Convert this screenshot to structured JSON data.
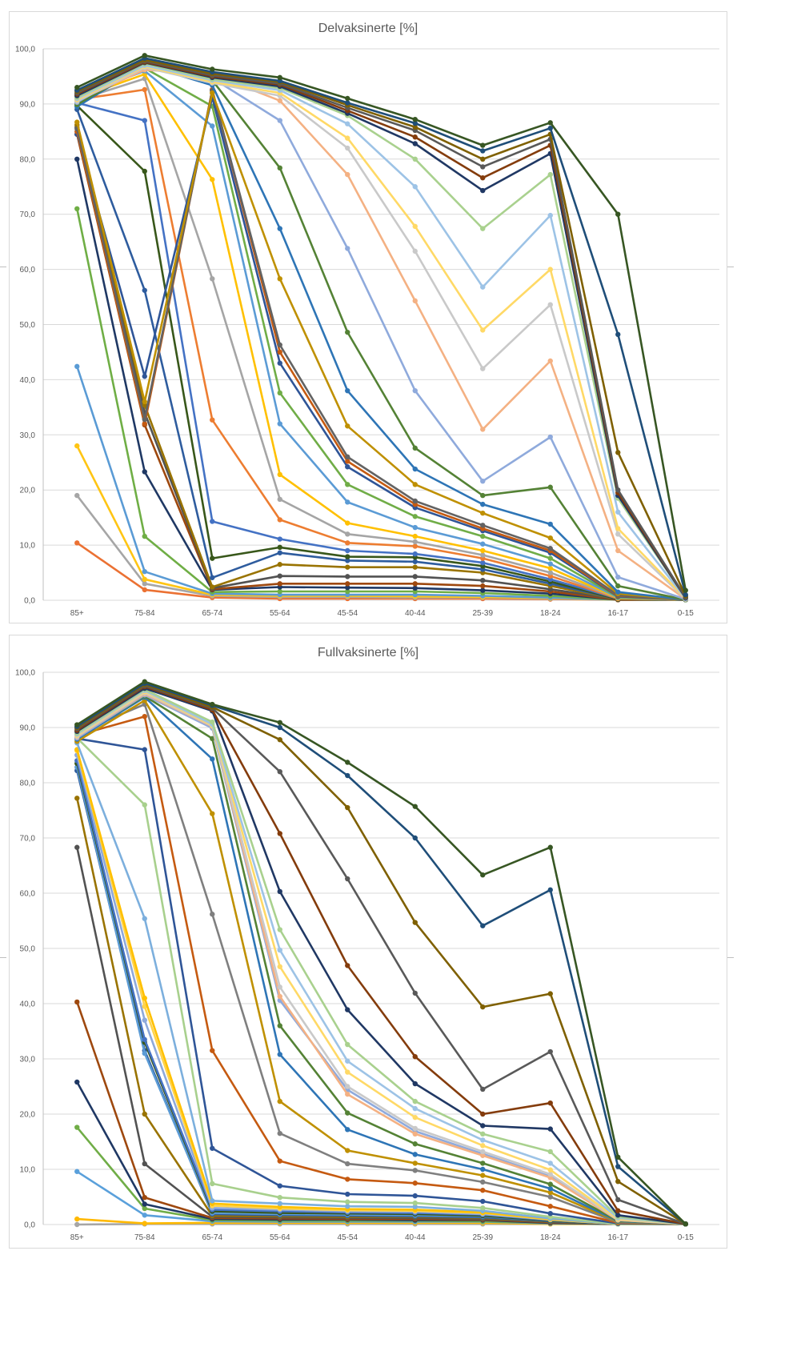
{
  "chart_data": [
    {
      "type": "line",
      "title": "Delvaksinerte [%]",
      "xlabel": "",
      "ylabel": "",
      "ylim": [
        0,
        100
      ],
      "y_ticks": [
        "0,0",
        "10,0",
        "20,0",
        "30,0",
        "40,0",
        "50,0",
        "60,0",
        "70,0",
        "80,0",
        "90,0",
        "100,0"
      ],
      "categories": [
        "85+",
        "75-84",
        "65-74",
        "55-64",
        "45-54",
        "40-44",
        "25-39",
        "18-24",
        "16-17",
        "0-15"
      ],
      "grid": true,
      "legend": "none",
      "series": [
        {
          "color": "#375623",
          "values": [
            93.0,
            98.8,
            96.3,
            94.8,
            91.0,
            87.2,
            82.5,
            86.6,
            70.0,
            1.8
          ]
        },
        {
          "color": "#1F4E79",
          "values": [
            92.5,
            98.3,
            95.8,
            94.2,
            90.2,
            86.5,
            81.5,
            85.6,
            48.2,
            1.0
          ]
        },
        {
          "color": "#7F6000",
          "values": [
            92.3,
            98.0,
            95.5,
            94.0,
            89.8,
            85.8,
            80.0,
            84.5,
            26.8,
            0.8
          ]
        },
        {
          "color": "#595959",
          "values": [
            92.0,
            97.8,
            95.2,
            93.7,
            89.3,
            85.2,
            78.6,
            83.6,
            20.0,
            0.5
          ]
        },
        {
          "color": "#843C0C",
          "values": [
            91.8,
            97.6,
            95.0,
            93.5,
            88.8,
            84.0,
            76.6,
            82.5,
            19.5,
            0.5
          ]
        },
        {
          "color": "#203864",
          "values": [
            91.5,
            97.5,
            94.8,
            93.2,
            88.3,
            82.8,
            74.3,
            81.0,
            19.0,
            0.4
          ]
        },
        {
          "color": "#A9D18E",
          "values": [
            91.2,
            97.3,
            94.5,
            92.9,
            87.9,
            80.0,
            67.4,
            77.2,
            18.5,
            0.4
          ]
        },
        {
          "color": "#9DC3E6",
          "values": [
            91.0,
            97.0,
            94.3,
            92.5,
            86.4,
            75.0,
            56.8,
            69.8,
            16.0,
            0.3
          ]
        },
        {
          "color": "#FFD966",
          "values": [
            90.8,
            96.8,
            94.0,
            92.0,
            83.8,
            67.8,
            49.0,
            60.0,
            13.0,
            0.3
          ]
        },
        {
          "color": "#C9C9C9",
          "values": [
            90.5,
            96.6,
            93.8,
            91.5,
            82.0,
            63.3,
            42.0,
            53.6,
            12.0,
            0.2
          ]
        },
        {
          "color": "#F4B183",
          "values": [
            90.6,
            96.2,
            95.4,
            90.6,
            77.2,
            54.3,
            31.0,
            43.4,
            9.0,
            0.2
          ]
        },
        {
          "color": "#8FAADC",
          "values": [
            90.3,
            97.3,
            94.7,
            87.0,
            63.8,
            38.0,
            21.6,
            29.6,
            4.2,
            0.2
          ]
        },
        {
          "color": "#548235",
          "values": [
            89.9,
            96.9,
            94.3,
            78.4,
            48.6,
            27.6,
            19.0,
            20.5,
            2.6,
            0.1
          ]
        },
        {
          "color": "#2E75B6",
          "values": [
            89.5,
            97.1,
            93.4,
            67.4,
            38.0,
            23.8,
            17.4,
            13.8,
            1.5,
            0.1
          ]
        },
        {
          "color": "#BF9000",
          "values": [
            86.7,
            36.0,
            92.0,
            58.3,
            31.6,
            21.0,
            15.8,
            11.3,
            1.2,
            0.1
          ]
        },
        {
          "color": "#636363",
          "values": [
            85.5,
            32.8,
            92.4,
            46.3,
            26.0,
            18.0,
            13.6,
            9.4,
            0.9,
            0.1
          ]
        },
        {
          "color": "#C55A11",
          "values": [
            85.0,
            32.0,
            92.6,
            45.0,
            25.2,
            17.4,
            13.0,
            9.0,
            0.8,
            0.1
          ]
        },
        {
          "color": "#2F5597",
          "values": [
            84.5,
            40.6,
            91.2,
            43.0,
            24.2,
            16.8,
            12.6,
            8.6,
            0.7,
            0.1
          ]
        },
        {
          "color": "#70AD47",
          "values": [
            91.7,
            96.5,
            89.6,
            37.6,
            21.0,
            15.2,
            11.6,
            7.6,
            0.6,
            0.1
          ]
        },
        {
          "color": "#5B9BD5",
          "values": [
            91.3,
            96.0,
            86.0,
            32.0,
            17.8,
            13.2,
            10.2,
            6.6,
            0.5,
            0.1
          ]
        },
        {
          "color": "#FFC000",
          "values": [
            91.0,
            95.4,
            76.3,
            22.8,
            14.0,
            11.6,
            9.0,
            5.8,
            0.4,
            0.1
          ]
        },
        {
          "color": "#A5A5A5",
          "values": [
            90.7,
            94.6,
            58.3,
            18.3,
            12.0,
            10.6,
            8.2,
            5.0,
            0.4,
            0.1
          ]
        },
        {
          "color": "#ED7D31",
          "values": [
            90.8,
            92.6,
            32.7,
            14.6,
            10.4,
            9.8,
            7.6,
            4.4,
            0.3,
            0.1
          ]
        },
        {
          "color": "#4472C4",
          "values": [
            90.2,
            87.0,
            14.3,
            11.1,
            9.0,
            8.4,
            6.8,
            3.8,
            0.3,
            0.1
          ]
        },
        {
          "color": "#38571A",
          "values": [
            89.7,
            77.8,
            7.6,
            9.6,
            7.9,
            7.8,
            6.2,
            3.4,
            0.2,
            0.1
          ]
        },
        {
          "color": "#2E5C9E",
          "values": [
            89.0,
            56.2,
            4.1,
            8.6,
            7.2,
            7.0,
            5.6,
            3.0,
            0.2,
            0.1
          ]
        },
        {
          "color": "#997300",
          "values": [
            86.2,
            35.4,
            2.4,
            6.5,
            6.0,
            6.0,
            5.0,
            2.6,
            0.2,
            0.1
          ]
        },
        {
          "color": "#525252",
          "values": [
            85.8,
            34.0,
            2.2,
            4.4,
            4.3,
            4.3,
            3.6,
            2.0,
            0.2,
            0.1
          ]
        },
        {
          "color": "#9E480E",
          "values": [
            84.5,
            31.8,
            2.0,
            3.0,
            3.0,
            3.0,
            2.6,
            1.6,
            0.1,
            0.1
          ]
        },
        {
          "color": "#1F3864",
          "values": [
            80.0,
            23.3,
            1.9,
            2.4,
            2.3,
            2.2,
            1.8,
            1.2,
            0.1,
            0.1
          ]
        },
        {
          "color": "#6FAE45",
          "values": [
            71.0,
            11.6,
            1.5,
            1.6,
            1.6,
            1.6,
            1.3,
            0.8,
            0.1,
            0.1
          ]
        },
        {
          "color": "#5A9BD5",
          "values": [
            42.4,
            5.2,
            1.2,
            1.0,
            1.0,
            1.0,
            0.8,
            0.5,
            0.1,
            0.1
          ]
        },
        {
          "color": "#FFC514",
          "values": [
            28.0,
            3.8,
            1.0,
            0.8,
            0.8,
            0.7,
            0.6,
            0.4,
            0.1,
            0.1
          ]
        },
        {
          "color": "#A6A6A6",
          "values": [
            19.0,
            3.0,
            0.8,
            0.6,
            0.6,
            0.5,
            0.5,
            0.3,
            0.1,
            0.1
          ]
        },
        {
          "color": "#EB7133",
          "values": [
            10.4,
            1.9,
            0.5,
            0.3,
            0.3,
            0.3,
            0.3,
            0.2,
            0.1,
            0.1
          ]
        }
      ]
    },
    {
      "type": "line",
      "title": "Fullvaksinerte [%]",
      "xlabel": "",
      "ylabel": "",
      "ylim": [
        0,
        100
      ],
      "y_ticks": [
        "0,0",
        "10,0",
        "20,0",
        "30,0",
        "40,0",
        "50,0",
        "60,0",
        "70,0",
        "80,0",
        "90,0",
        "100,0"
      ],
      "categories": [
        "85+",
        "75-84",
        "65-74",
        "55-64",
        "45-54",
        "40-44",
        "25-39",
        "18-24",
        "16-17",
        "0-15"
      ],
      "grid": true,
      "legend": "none",
      "series": [
        {
          "color": "#375623",
          "values": [
            90.5,
            98.3,
            94.2,
            90.9,
            83.7,
            75.7,
            63.3,
            68.3,
            12.2,
            0.1
          ]
        },
        {
          "color": "#1F4E79",
          "values": [
            90.2,
            98.0,
            94.0,
            90.0,
            81.3,
            70.0,
            54.1,
            60.6,
            10.5,
            0.1
          ]
        },
        {
          "color": "#7F6000",
          "values": [
            90.0,
            97.8,
            93.7,
            87.8,
            75.5,
            54.7,
            39.4,
            41.8,
            7.8,
            0.1
          ]
        },
        {
          "color": "#595959",
          "values": [
            89.8,
            97.6,
            93.5,
            82.0,
            62.6,
            41.9,
            24.5,
            31.3,
            4.5,
            0.1
          ]
        },
        {
          "color": "#843C0C",
          "values": [
            89.5,
            97.4,
            93.2,
            70.8,
            46.9,
            30.4,
            20.0,
            22.0,
            2.5,
            0.1
          ]
        },
        {
          "color": "#203864",
          "values": [
            89.3,
            97.1,
            93.0,
            60.3,
            38.9,
            25.5,
            17.9,
            17.3,
            1.7,
            0.1
          ]
        },
        {
          "color": "#A9D18E",
          "values": [
            89.0,
            96.9,
            91.0,
            53.4,
            32.6,
            22.3,
            16.4,
            13.2,
            1.4,
            0.1
          ]
        },
        {
          "color": "#9DC3E6",
          "values": [
            88.8,
            96.7,
            90.6,
            49.7,
            29.6,
            21.0,
            15.3,
            11.1,
            1.2,
            0.1
          ]
        },
        {
          "color": "#FFD966",
          "values": [
            88.6,
            96.5,
            90.4,
            46.7,
            27.6,
            19.4,
            14.3,
            9.9,
            1.0,
            0.1
          ]
        },
        {
          "color": "#C9C9C9",
          "values": [
            88.4,
            96.3,
            90.3,
            43.0,
            25.0,
            17.4,
            13.2,
            9.1,
            0.9,
            0.1
          ]
        },
        {
          "color": "#F4B183",
          "values": [
            88.3,
            96.1,
            90.2,
            41.3,
            23.6,
            16.4,
            12.5,
            8.5,
            0.8,
            0.1
          ]
        },
        {
          "color": "#8FAADC",
          "values": [
            88.1,
            95.9,
            89.9,
            40.6,
            24.4,
            16.9,
            12.8,
            8.7,
            0.8,
            0.1
          ]
        },
        {
          "color": "#548235",
          "values": [
            88.2,
            95.7,
            88.0,
            36.0,
            20.2,
            14.6,
            11.1,
            7.3,
            0.7,
            0.1
          ]
        },
        {
          "color": "#2E75B6",
          "values": [
            87.9,
            95.5,
            84.3,
            30.8,
            17.2,
            12.7,
            10.0,
            6.5,
            0.6,
            0.1
          ]
        },
        {
          "color": "#BF9000",
          "values": [
            87.5,
            94.9,
            74.4,
            22.3,
            13.4,
            11.1,
            8.9,
            5.8,
            0.5,
            0.1
          ]
        },
        {
          "color": "#7F7F7F",
          "values": [
            89.0,
            94.2,
            56.2,
            16.5,
            11.0,
            9.8,
            7.7,
            5.0,
            0.4,
            0.1
          ]
        },
        {
          "color": "#C55A11",
          "values": [
            88.6,
            92.0,
            31.5,
            11.5,
            8.2,
            7.5,
            6.2,
            3.3,
            0.3,
            0.1
          ]
        },
        {
          "color": "#2F5597",
          "values": [
            88.0,
            86.0,
            13.8,
            7.0,
            5.5,
            5.2,
            4.2,
            2.0,
            0.2,
            0.1
          ]
        },
        {
          "color": "#A8D08D",
          "values": [
            88.1,
            76.0,
            7.4,
            4.9,
            4.1,
            3.9,
            3.0,
            1.4,
            0.1,
            0.1
          ]
        },
        {
          "color": "#7CAFDD",
          "values": [
            87.2,
            55.4,
            4.3,
            3.8,
            3.3,
            3.2,
            2.5,
            1.1,
            0.1,
            0.1
          ]
        },
        {
          "color": "#FFC000",
          "values": [
            86.0,
            41.0,
            3.8,
            3.2,
            2.8,
            2.7,
            2.2,
            1.0,
            0.1,
            0.1
          ]
        },
        {
          "color": "#FFD34D",
          "values": [
            85.8,
            39.5,
            3.4,
            2.9,
            2.6,
            2.5,
            2.1,
            0.9,
            0.1,
            0.1
          ]
        },
        {
          "color": "#8EA9DB",
          "values": [
            85.0,
            37.0,
            3.0,
            2.7,
            2.4,
            2.3,
            1.9,
            0.9,
            0.1,
            0.1
          ]
        },
        {
          "color": "#4472C4",
          "values": [
            84.0,
            33.5,
            2.7,
            2.4,
            2.2,
            2.1,
            1.8,
            0.8,
            0.1,
            0.1
          ]
        },
        {
          "color": "#38571A",
          "values": [
            83.5,
            33.0,
            2.4,
            2.1,
            2.0,
            1.9,
            1.6,
            0.7,
            0.1,
            0.1
          ]
        },
        {
          "color": "#5B9BD5",
          "values": [
            82.8,
            31.0,
            2.1,
            1.9,
            1.8,
            1.7,
            1.5,
            0.7,
            0.1,
            0.1
          ]
        },
        {
          "color": "#2E5C9E",
          "values": [
            82.2,
            31.5,
            1.9,
            1.7,
            1.6,
            1.5,
            1.3,
            0.6,
            0.1,
            0.1
          ]
        },
        {
          "color": "#997300",
          "values": [
            77.2,
            20.0,
            1.6,
            1.5,
            1.4,
            1.4,
            1.2,
            0.5,
            0.1,
            0.1
          ]
        },
        {
          "color": "#525252",
          "values": [
            68.3,
            11.0,
            1.4,
            1.3,
            1.2,
            1.2,
            1.0,
            0.5,
            0.1,
            0.1
          ]
        },
        {
          "color": "#9E480E",
          "values": [
            40.3,
            4.9,
            1.2,
            1.1,
            1.0,
            1.0,
            0.9,
            0.4,
            0.1,
            0.1
          ]
        },
        {
          "color": "#1F3864",
          "values": [
            25.8,
            3.7,
            1.0,
            0.9,
            0.9,
            0.8,
            0.8,
            0.3,
            0.1,
            0.1
          ]
        },
        {
          "color": "#70AD47",
          "values": [
            17.6,
            2.9,
            0.8,
            0.7,
            0.7,
            0.7,
            0.6,
            0.3,
            0.1,
            0.1
          ]
        },
        {
          "color": "#5AA0DB",
          "values": [
            9.6,
            1.7,
            0.6,
            0.5,
            0.5,
            0.5,
            0.5,
            0.2,
            0.1,
            0.1
          ]
        },
        {
          "color": "#FFB900",
          "values": [
            1.0,
            0.2,
            0.3,
            0.3,
            0.3,
            0.3,
            0.3,
            0.1,
            0.1,
            0.1
          ]
        },
        {
          "color": "#A6A6A6",
          "values": [
            0.0,
            0.1,
            0.1,
            0.1,
            0.1,
            0.1,
            0.1,
            0.1,
            0.1,
            0.1
          ]
        }
      ]
    }
  ]
}
